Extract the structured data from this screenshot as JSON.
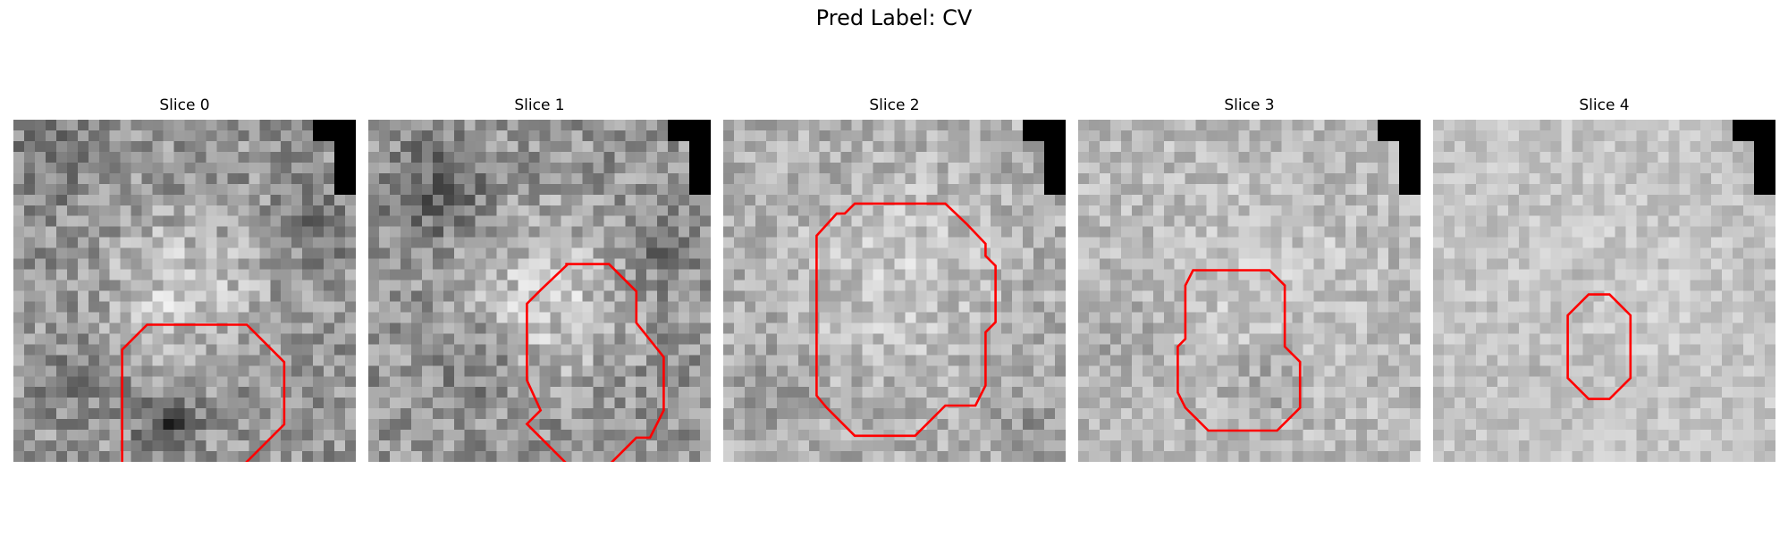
{
  "figure": {
    "title": "Pred Label: CV"
  },
  "panels": [
    {
      "title": "Slice 0"
    },
    {
      "title": "Slice 1"
    },
    {
      "title": "Slice 2"
    },
    {
      "title": "Slice 3"
    },
    {
      "title": "Slice 4"
    }
  ],
  "contour_color": "#ff0000",
  "colormap": "gray"
}
